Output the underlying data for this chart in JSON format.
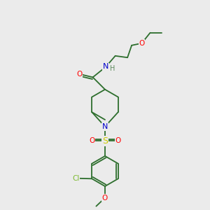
{
  "bg_color": "#ebebeb",
  "bond_color": "#2d6e2d",
  "atom_colors": {
    "O": "#ff0000",
    "N": "#0000cc",
    "S": "#cccc00",
    "Cl": "#7cba2f",
    "H": "#5c8a5c",
    "C": "#2d6e2d"
  },
  "bond_lw": 1.3,
  "fontsize": 7.5
}
